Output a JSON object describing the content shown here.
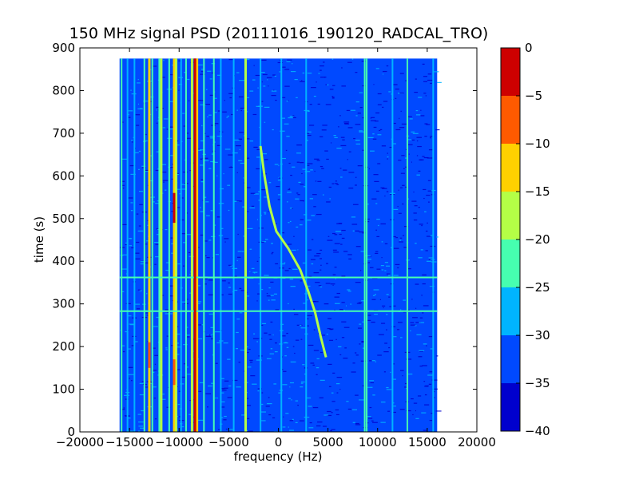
{
  "chart_data": {
    "type": "heatmap",
    "title": "150 MHz signal PSD (20111016_190120_RADCAL_TRO)",
    "xlabel": "frequency (Hz)",
    "ylabel": "time (s)",
    "xlim": [
      -20000,
      20000
    ],
    "ylim": [
      0,
      900
    ],
    "xticks": [
      -20000,
      -15000,
      -10000,
      -5000,
      0,
      5000,
      10000,
      15000,
      20000
    ],
    "xtick_labels": [
      "−20000",
      "−15000",
      "−10000",
      "−5000",
      "0",
      "5000",
      "10000",
      "15000",
      "20000"
    ],
    "yticks": [
      0,
      100,
      200,
      300,
      400,
      500,
      600,
      700,
      800,
      900
    ],
    "ytick_labels": [
      "0",
      "100",
      "200",
      "300",
      "400",
      "500",
      "600",
      "700",
      "800",
      "900"
    ],
    "data_extent": {
      "x": [
        -16000,
        16000
      ],
      "y": [
        0,
        875
      ]
    },
    "colorbar": {
      "levels": [
        -40,
        -35,
        -30,
        -25,
        -20,
        -15,
        -10,
        -5,
        0
      ],
      "level_labels": [
        "−40",
        "−35",
        "−30",
        "−25",
        "−20",
        "−15",
        "−10",
        "−5",
        "0"
      ],
      "colors": [
        "#0000cd",
        "#0049ff",
        "#00b4ff",
        "#46ffb0",
        "#b4ff46",
        "#ffd000",
        "#ff5a00",
        "#cd0000"
      ]
    },
    "background_level": -35,
    "vertical_lines": [
      {
        "x": -15800,
        "level": -25
      },
      {
        "x": -15200,
        "level": -30
      },
      {
        "x": -14500,
        "level": -30
      },
      {
        "x": -13500,
        "level": -25
      },
      {
        "x": -13000,
        "level": -15
      },
      {
        "x": -12700,
        "level": -25
      },
      {
        "x": -12000,
        "level": -25
      },
      {
        "x": -11800,
        "level": -20
      },
      {
        "x": -11000,
        "level": -25
      },
      {
        "x": -10500,
        "level": -15
      },
      {
        "x": -10300,
        "level": -20
      },
      {
        "x": -9800,
        "level": -30
      },
      {
        "x": -9300,
        "level": -25
      },
      {
        "x": -8700,
        "level": -20
      },
      {
        "x": -8400,
        "level": -10
      },
      {
        "x": -8200,
        "level": -15
      },
      {
        "x": -7500,
        "level": -25
      },
      {
        "x": -6500,
        "level": -25
      },
      {
        "x": -5800,
        "level": -30
      },
      {
        "x": -4500,
        "level": -30
      },
      {
        "x": -3300,
        "level": -20
      },
      {
        "x": -1800,
        "level": -30
      },
      {
        "x": 300,
        "level": -30
      },
      {
        "x": 2800,
        "level": -30
      },
      {
        "x": 8700,
        "level": -25
      },
      {
        "x": 8900,
        "level": -25
      },
      {
        "x": 11500,
        "level": -30
      },
      {
        "x": 13000,
        "level": -25
      },
      {
        "x": 15600,
        "level": -30
      }
    ],
    "horizontal_lines": [
      {
        "y": 283,
        "level": -25
      },
      {
        "y": 362,
        "level": -25
      }
    ],
    "sweep_track": {
      "level": -20,
      "points": [
        [
          -1800,
          670
        ],
        [
          -1400,
          600
        ],
        [
          -900,
          530
        ],
        [
          -200,
          470
        ],
        [
          1000,
          430
        ],
        [
          2200,
          380
        ],
        [
          3000,
          330
        ],
        [
          3700,
          280
        ],
        [
          4300,
          220
        ],
        [
          4800,
          175
        ]
      ]
    },
    "hot_segments": [
      {
        "x": -13000,
        "y": [
          150,
          210
        ],
        "level": -10
      },
      {
        "x": -10500,
        "y": [
          490,
          560
        ],
        "level": -5
      },
      {
        "x": -10500,
        "y": [
          110,
          170
        ],
        "level": -10
      },
      {
        "x": -8400,
        "y": [
          0,
          875
        ],
        "level": -5
      }
    ]
  }
}
